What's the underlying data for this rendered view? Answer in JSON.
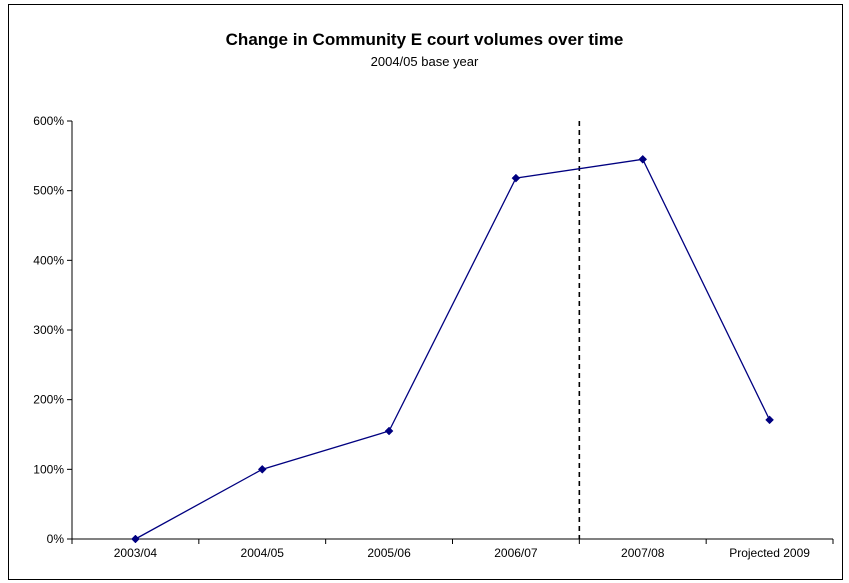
{
  "chart_data": {
    "type": "line",
    "title": "Change in Community E court volumes over time",
    "subtitle": "2004/05 base year",
    "categories": [
      "2003/04",
      "2004/05",
      "2005/06",
      "2006/07",
      "2007/08",
      "Projected 2009"
    ],
    "series": [
      {
        "values": [
          0,
          100,
          155,
          518,
          545,
          171
        ]
      }
    ],
    "ylim": [
      0,
      600
    ],
    "yticks": [
      0,
      100,
      200,
      300,
      400,
      500,
      600
    ],
    "ytick_labels": [
      "0%",
      "100%",
      "200%",
      "300%",
      "400%",
      "500%",
      "600%"
    ],
    "grid": false,
    "legend": "none",
    "vertical_divider_after_category": "2006/07",
    "colors": {
      "line": "#000080",
      "marker": "#000080",
      "divider": "#000000",
      "axis": "#000000"
    }
  }
}
